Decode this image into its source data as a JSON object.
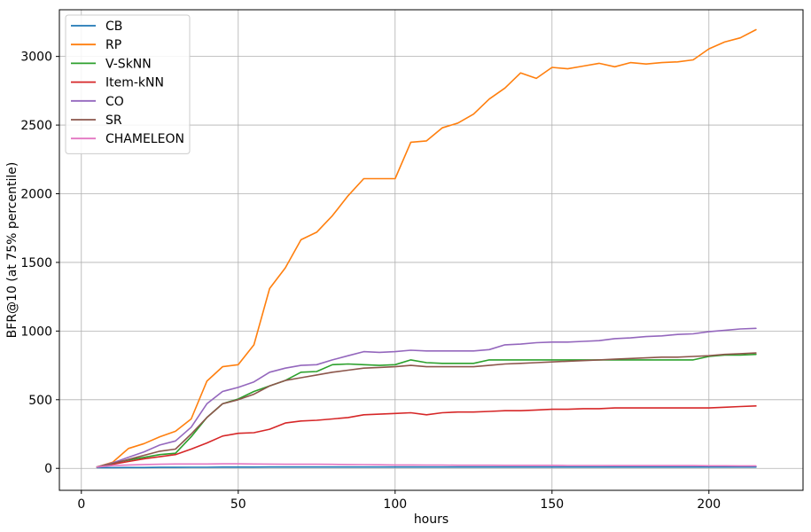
{
  "chart_data": {
    "type": "line",
    "title": "",
    "xlabel": "hours",
    "ylabel": "BFR@10 (at 75% percentile)",
    "xlim": [
      -7,
      230
    ],
    "ylim": [
      -160,
      3340
    ],
    "xticks": [
      0,
      50,
      100,
      150,
      200
    ],
    "yticks": [
      0,
      500,
      1000,
      1500,
      2000,
      2500,
      3000
    ],
    "grid": true,
    "legend_position": "upper-left",
    "x": [
      5,
      10,
      15,
      20,
      25,
      30,
      35,
      40,
      45,
      50,
      55,
      60,
      65,
      70,
      75,
      80,
      85,
      90,
      95,
      100,
      105,
      110,
      115,
      120,
      125,
      130,
      135,
      140,
      145,
      150,
      155,
      160,
      165,
      170,
      175,
      180,
      185,
      190,
      195,
      200,
      205,
      210,
      215
    ],
    "series": [
      {
        "name": "CB",
        "color": "#1f77b4",
        "values": [
          5,
          5,
          6,
          6,
          7,
          7,
          8,
          8,
          9,
          9,
          9,
          10,
          10,
          10,
          10,
          10,
          10,
          10,
          10,
          10,
          10,
          10,
          10,
          10,
          10,
          10,
          10,
          10,
          10,
          10,
          10,
          10,
          10,
          10,
          10,
          10,
          10,
          10,
          10,
          10,
          10,
          10,
          10
        ]
      },
      {
        "name": "RP",
        "color": "#ff7f0e",
        "values": [
          10,
          45,
          145,
          180,
          230,
          270,
          360,
          635,
          740,
          755,
          900,
          1310,
          1460,
          1665,
          1720,
          1840,
          1985,
          2110,
          2110,
          2110,
          2375,
          2385,
          2480,
          2515,
          2580,
          2690,
          2770,
          2880,
          2840,
          2920,
          2910,
          2930,
          2950,
          2925,
          2955,
          2945,
          2955,
          2960,
          2975,
          3055,
          3105,
          3135,
          3195
        ]
      },
      {
        "name": "V-SkNN",
        "color": "#2ca02c",
        "values": [
          10,
          40,
          60,
          80,
          100,
          110,
          230,
          370,
          470,
          505,
          560,
          600,
          640,
          700,
          705,
          755,
          760,
          755,
          750,
          755,
          790,
          770,
          765,
          765,
          765,
          790,
          790,
          790,
          790,
          790,
          790,
          790,
          790,
          790,
          790,
          790,
          790,
          790,
          790,
          815,
          825,
          825,
          830
        ]
      },
      {
        "name": "Item-kNN",
        "color": "#d62728",
        "values": [
          10,
          30,
          50,
          70,
          85,
          100,
          140,
          185,
          235,
          255,
          260,
          285,
          330,
          345,
          350,
          360,
          370,
          390,
          395,
          400,
          405,
          390,
          405,
          410,
          410,
          415,
          420,
          420,
          425,
          430,
          430,
          435,
          435,
          440,
          440,
          440,
          440,
          440,
          440,
          440,
          445,
          450,
          455
        ]
      },
      {
        "name": "CO",
        "color": "#9467bd",
        "values": [
          10,
          40,
          80,
          120,
          170,
          200,
          300,
          470,
          560,
          590,
          630,
          700,
          730,
          750,
          755,
          790,
          820,
          850,
          845,
          850,
          860,
          855,
          855,
          855,
          855,
          865,
          900,
          905,
          915,
          920,
          920,
          925,
          930,
          945,
          950,
          960,
          965,
          975,
          980,
          995,
          1005,
          1015,
          1020
        ]
      },
      {
        "name": "SR",
        "color": "#8c564b",
        "values": [
          10,
          35,
          65,
          95,
          125,
          140,
          250,
          370,
          470,
          500,
          540,
          600,
          640,
          660,
          680,
          700,
          715,
          730,
          735,
          740,
          750,
          740,
          740,
          740,
          740,
          750,
          760,
          765,
          770,
          775,
          780,
          785,
          790,
          795,
          800,
          805,
          810,
          810,
          815,
          820,
          830,
          835,
          840
        ]
      },
      {
        "name": "CHAMELEON",
        "color": "#e377c2",
        "values": [
          10,
          20,
          25,
          28,
          30,
          32,
          32,
          32,
          33,
          33,
          32,
          31,
          30,
          30,
          30,
          29,
          28,
          27,
          26,
          25,
          25,
          24,
          24,
          23,
          23,
          23,
          22,
          22,
          22,
          22,
          21,
          21,
          21,
          20,
          20,
          20,
          20,
          20,
          20,
          19,
          19,
          18,
          18
        ]
      }
    ]
  }
}
